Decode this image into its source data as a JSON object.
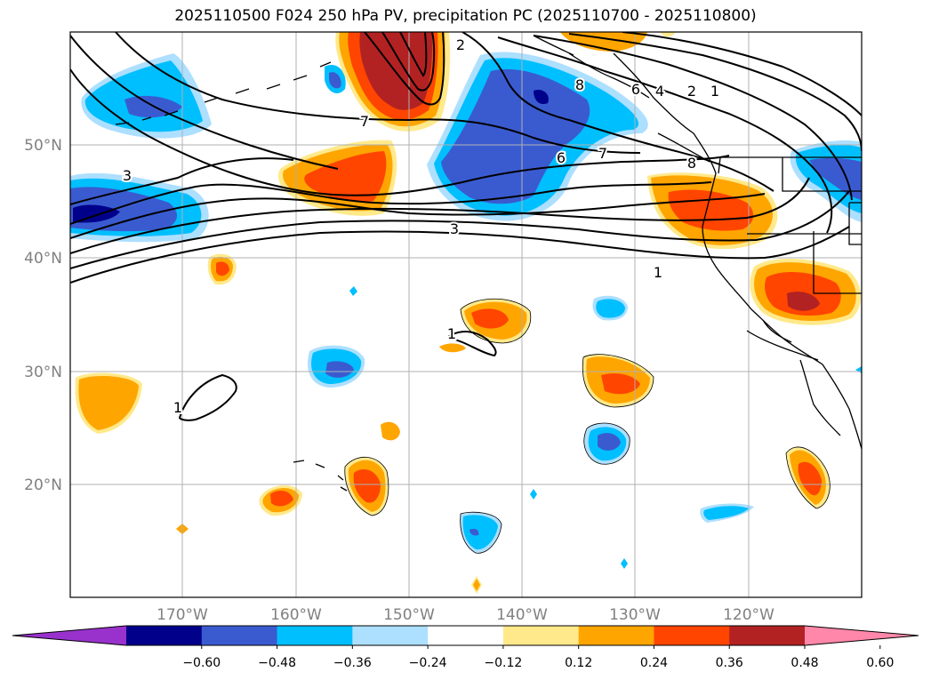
{
  "title": "2025110500 F024 250 hPa PV, precipitation PC (2025110700 - 2025110800)",
  "map": {
    "lat_labels": [
      "50°N",
      "40°N",
      "30°N",
      "20°N"
    ],
    "lon_labels": [
      "170°W",
      "160°W",
      "150°W",
      "140°W",
      "130°W",
      "120°W"
    ],
    "pv_contour_labels": [
      "1",
      "2",
      "3",
      "4",
      "6",
      "7",
      "8"
    ],
    "pv_labels_shown": [
      "2",
      "7",
      "3",
      "6",
      "7",
      "8",
      "6",
      "4",
      "2",
      "1",
      "8",
      "1",
      "1",
      "1",
      "3"
    ]
  },
  "colorbar": {
    "ticks": [
      "−0.60",
      "−0.48",
      "−0.36",
      "−0.24",
      "−0.12",
      "0.12",
      "0.24",
      "0.36",
      "0.48",
      "0.60"
    ],
    "colors": [
      "#9932CC",
      "#00008B",
      "#3A5BD0",
      "#00BFFF",
      "#ADDFFF",
      "#FFFFFF",
      "#FFE98A",
      "#FFA500",
      "#FF4500",
      "#B22222",
      "#FF88AA"
    ]
  },
  "colors": {
    "gridline": "#b0b0b0",
    "coast": "#000000",
    "contour": "#000000"
  }
}
